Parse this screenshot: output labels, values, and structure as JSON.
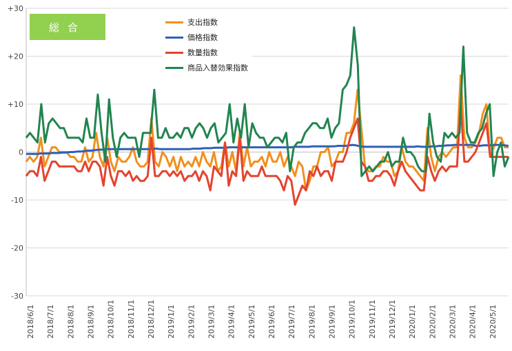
{
  "badge": {
    "label": "総合"
  },
  "chart_data": {
    "type": "line",
    "title": "",
    "xlabel": "",
    "ylabel": "",
    "ylim": [
      -30,
      30
    ],
    "y_ticks": [
      "+30",
      "+20",
      "+10",
      "0",
      "-10",
      "-20",
      "-30"
    ],
    "x_tick_labels": [
      "2018/6/1",
      "2018/7/1",
      "2018/8/1",
      "2018/9/1",
      "2018/10/1",
      "2018/11/1",
      "2018/12/1",
      "2019/1/1",
      "2019/2/1",
      "2019/3/1",
      "2019/4/1",
      "2019/5/1",
      "2019/6/1",
      "2019/7/1",
      "2019/8/1",
      "2019/9/1",
      "2019/10/1",
      "2019/11/1",
      "2019/12/1",
      "2020/1/1",
      "2020/2/1",
      "2020/3/1",
      "2020/4/1",
      "2020/5/1"
    ],
    "grid": "horizontal",
    "legend_position": "top-center",
    "series": [
      {
        "name": "支出指数",
        "color": "#f0901c",
        "values": [
          -2,
          -1,
          -2,
          -1,
          3,
          -3,
          -1,
          1,
          1,
          0,
          0,
          0,
          -1,
          -1,
          -2,
          -2,
          1,
          -2,
          -1,
          4,
          -1,
          -3,
          3,
          -2,
          -4,
          -1,
          -2,
          -2,
          -1,
          1,
          -2,
          -3,
          -3,
          -2,
          7,
          -2,
          -3,
          0,
          -1,
          -3,
          -1,
          -4,
          -1,
          -3,
          -2,
          -3,
          -1,
          -3,
          0,
          -2,
          -3,
          0,
          -4,
          -3,
          2,
          -3,
          0,
          -4,
          4,
          -3,
          1,
          -3,
          -2,
          -2,
          -1,
          -3,
          0,
          -2,
          -2,
          0,
          -3,
          -1,
          -3,
          -5,
          -2,
          -3,
          -8,
          -6,
          -3,
          -3,
          0,
          0,
          1,
          -3,
          -2,
          0,
          0,
          4,
          4,
          6,
          13,
          5,
          -3,
          -4,
          -4,
          -3,
          -3,
          -1,
          -2,
          -2,
          -5,
          -4,
          1,
          -2,
          -3,
          -3,
          -4,
          -5,
          -6,
          5,
          -1,
          -4,
          -1,
          0,
          -1,
          0,
          1,
          1,
          16,
          3,
          1,
          1,
          2,
          4,
          8,
          10,
          -1,
          1,
          3,
          3,
          1,
          1
        ]
      },
      {
        "name": "価格指数",
        "color": "#2f5fb5",
        "values": [
          -0.4,
          -0.4,
          -0.4,
          -0.4,
          -0.3,
          -0.3,
          -0.3,
          -0.2,
          -0.2,
          -0.2,
          -0.1,
          -0.1,
          0,
          0,
          0.1,
          0.1,
          0.2,
          0.3,
          0.3,
          0.4,
          0.5,
          0.5,
          0.6,
          0.6,
          0.6,
          0.6,
          0.6,
          0.6,
          0.6,
          0.6,
          0.6,
          0.6,
          0.6,
          0.6,
          0.6,
          0.7,
          0.7,
          0.6,
          0.6,
          0.6,
          0.6,
          0.6,
          0.6,
          0.6,
          0.6,
          0.6,
          0.7,
          0.7,
          0.7,
          0.8,
          0.8,
          0.8,
          0.9,
          0.9,
          0.9,
          0.9,
          1,
          1,
          1,
          1,
          1,
          1,
          1,
          1,
          1,
          1,
          1,
          1,
          1,
          1,
          1,
          1,
          1,
          1,
          1.1,
          1.1,
          1.1,
          1.1,
          1.1,
          1.2,
          1.2,
          1.2,
          1.2,
          1.2,
          1.2,
          1.2,
          1.3,
          1.3,
          1.3,
          1.4,
          1.5,
          1.4,
          1.2,
          1.1,
          1.1,
          1.1,
          1.1,
          1.1,
          1.1,
          1.1,
          1.1,
          1.1,
          1.1,
          1.1,
          1.1,
          1.1,
          1.1,
          1.1,
          1.2,
          1.1,
          1.1,
          1.1,
          1.2,
          1.2,
          1.3,
          1.3,
          1.4,
          1.4,
          1.5,
          1.5,
          1.5,
          1.5,
          1.5,
          1.5,
          1.3,
          1.3,
          1.4,
          1.4,
          1.4,
          1.5,
          1.5,
          1.5,
          1.4,
          1.3
        ]
      },
      {
        "name": "数量指数",
        "color": "#e4432e",
        "values": [
          -5,
          -4,
          -4,
          -5,
          -1,
          -6,
          -4,
          -2,
          -2,
          -3,
          -3,
          -3,
          -3,
          -3,
          -4,
          -4,
          -2,
          -4,
          -2,
          -2,
          -3,
          -7,
          -1,
          -5,
          -7,
          -4,
          -4,
          -5,
          -4,
          -6,
          -5,
          -6,
          -6,
          -5,
          3,
          -5,
          -5,
          -4,
          -4,
          -5,
          -4,
          -5,
          -4,
          -6,
          -5,
          -5,
          -4,
          -6,
          -4,
          -5,
          -8,
          -3,
          -4,
          -5,
          2,
          -7,
          -4,
          -5,
          3,
          -6,
          -4,
          -5,
          -5,
          -5,
          -3,
          -5,
          -5,
          -5,
          -5,
          -6,
          -8,
          -5,
          -6,
          -11,
          -9,
          -7,
          -8,
          -4,
          -5,
          -3,
          -5,
          -4,
          -4,
          -6,
          -2,
          -2,
          -2,
          0,
          3,
          5,
          7,
          -2,
          -3,
          -6,
          -6,
          -5,
          -5,
          -4,
          -4,
          -5,
          -7,
          -4,
          -2,
          -4,
          -5,
          -6,
          -7,
          -8,
          -8,
          -1,
          -4,
          -6,
          -4,
          -3,
          -4,
          -3,
          -3,
          -3,
          10,
          -2,
          -2,
          -1,
          0,
          2,
          4,
          6,
          -1,
          -1,
          -1,
          -1,
          -1,
          -1
        ]
      },
      {
        "name": "商品入替効果指数",
        "color": "#22844f",
        "values": [
          3,
          4,
          3,
          2,
          10,
          2,
          6,
          7,
          6,
          5,
          5,
          3,
          3,
          3,
          3,
          2,
          7,
          3,
          3,
          12,
          4,
          -2,
          11,
          3,
          -1,
          3,
          4,
          3,
          3,
          3,
          -1,
          4,
          4,
          4,
          13,
          3,
          3,
          5,
          3,
          3,
          4,
          3,
          5,
          5,
          3,
          5,
          6,
          5,
          3,
          5,
          6,
          2,
          3,
          4,
          10,
          2,
          7,
          3,
          10,
          1,
          6,
          4,
          3,
          3,
          1,
          2,
          3,
          3,
          2,
          4,
          -4,
          1,
          2,
          2,
          4,
          5,
          6,
          6,
          5,
          5,
          7,
          3,
          5,
          6,
          13,
          14,
          16,
          26,
          18,
          -5,
          -4,
          -3,
          -4,
          -3,
          -2,
          -2,
          0,
          -3,
          -2,
          -2,
          3,
          0,
          0,
          -1,
          -3,
          -4,
          -4,
          8,
          2,
          -1,
          -2,
          4,
          3,
          4,
          3,
          4,
          22,
          4,
          2,
          2,
          4,
          5,
          8,
          10,
          -5,
          0,
          2,
          -3,
          -1
        ]
      }
    ]
  }
}
